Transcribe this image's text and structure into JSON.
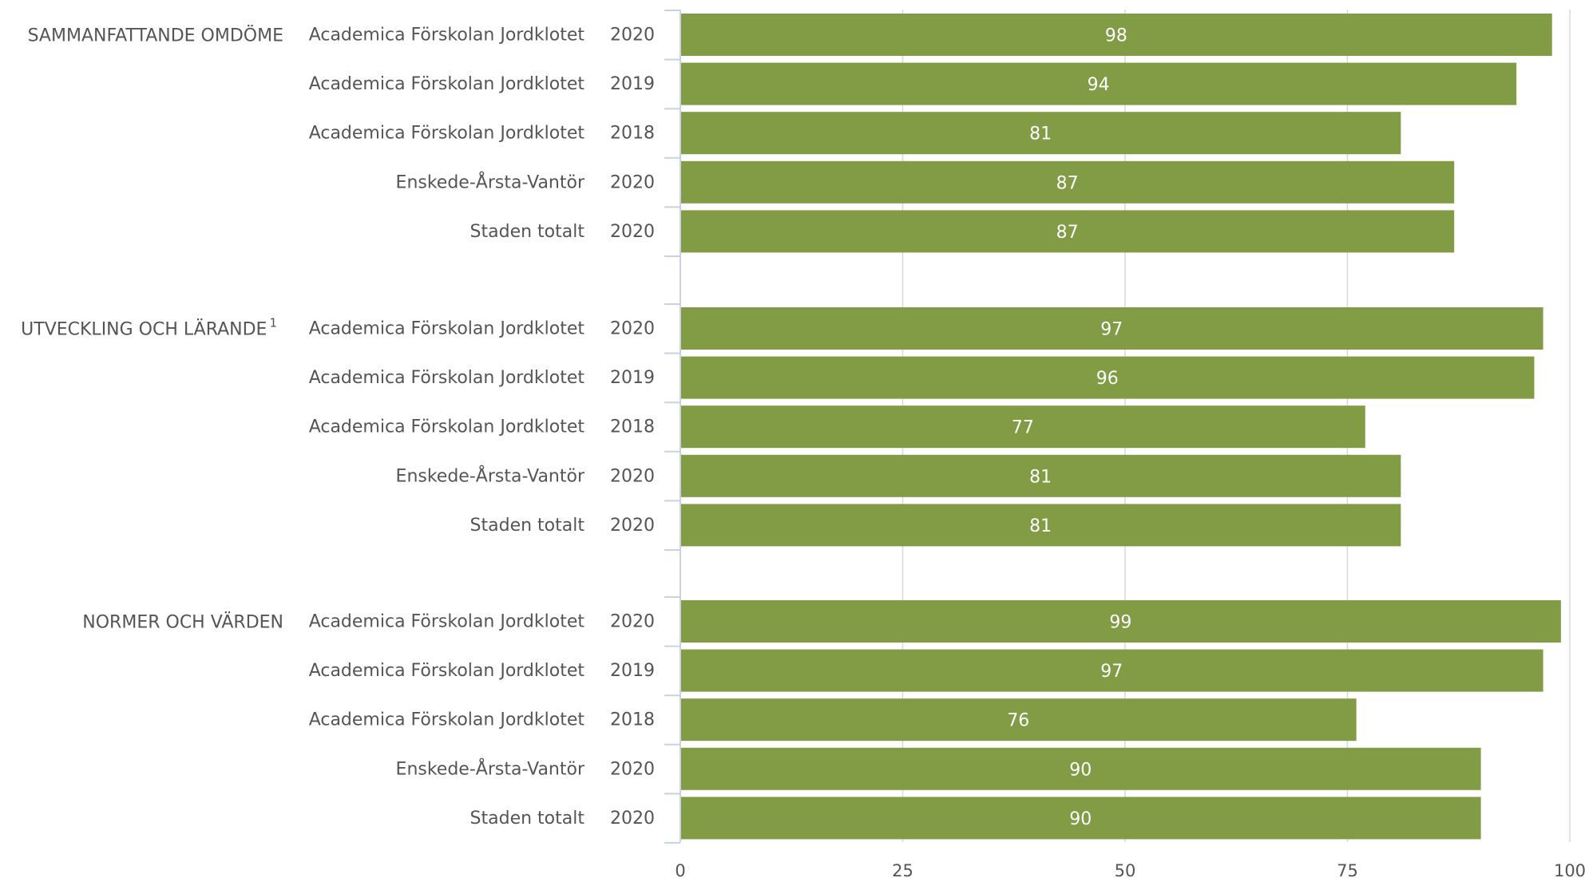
{
  "chart_data": {
    "type": "bar",
    "orientation": "horizontal",
    "bar_color": "#819C45",
    "value_label_color": "#ffffff",
    "xlim": [
      0,
      100
    ],
    "xticks": [
      0,
      25,
      50,
      75,
      100
    ],
    "xgrid": true,
    "groups": [
      {
        "label": "SAMMANFATTANDE OMDÖME",
        "footnote_mark": "",
        "rows": [
          {
            "name": "Academica Förskolan Jordklotet",
            "year": "2020",
            "value": 98
          },
          {
            "name": "Academica Förskolan Jordklotet",
            "year": "2019",
            "value": 94
          },
          {
            "name": "Academica Förskolan Jordklotet",
            "year": "2018",
            "value": 81
          },
          {
            "name": "Enskede-Årsta-Vantör",
            "year": "2020",
            "value": 87
          },
          {
            "name": "Staden totalt",
            "year": "2020",
            "value": 87
          }
        ]
      },
      {
        "label": "UTVECKLING OCH LÄRANDE",
        "footnote_mark": "1",
        "rows": [
          {
            "name": "Academica Förskolan Jordklotet",
            "year": "2020",
            "value": 97
          },
          {
            "name": "Academica Förskolan Jordklotet",
            "year": "2019",
            "value": 96
          },
          {
            "name": "Academica Förskolan Jordklotet",
            "year": "2018",
            "value": 77
          },
          {
            "name": "Enskede-Årsta-Vantör",
            "year": "2020",
            "value": 81
          },
          {
            "name": "Staden totalt",
            "year": "2020",
            "value": 81
          }
        ]
      },
      {
        "label": "NORMER OCH VÄRDEN",
        "footnote_mark": "",
        "rows": [
          {
            "name": "Academica Förskolan Jordklotet",
            "year": "2020",
            "value": 99
          },
          {
            "name": "Academica Förskolan Jordklotet",
            "year": "2019",
            "value": 97
          },
          {
            "name": "Academica Förskolan Jordklotet",
            "year": "2018",
            "value": 76
          },
          {
            "name": "Enskede-Årsta-Vantör",
            "year": "2020",
            "value": 90
          },
          {
            "name": "Staden totalt",
            "year": "2020",
            "value": 90
          }
        ]
      }
    ]
  }
}
